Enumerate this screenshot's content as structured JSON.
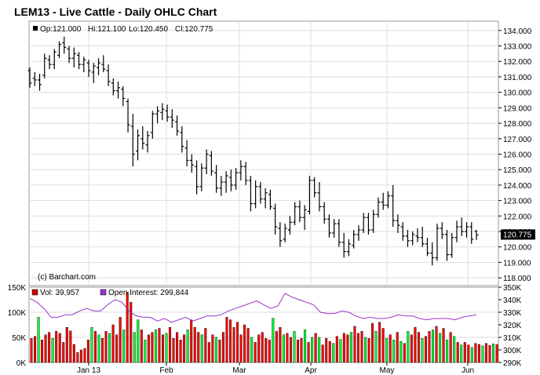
{
  "chart_data": [
    {
      "type": "ohlc",
      "title": "LEM13 - Live Cattle - Daily OHLC Chart",
      "info": {
        "open_label": "Op:121.000",
        "high_label": "Hi:121.100",
        "low_label": "Lo:120.450",
        "close_label": "Cl:120.775"
      },
      "watermark": "(c) Barchart.com",
      "last_price_label": "120.775",
      "last_price": 120.775,
      "ylim": [
        117.5,
        134.6
      ],
      "y_ticks": [
        "134.000",
        "133.000",
        "132.000",
        "131.000",
        "130.000",
        "129.000",
        "128.000",
        "127.000",
        "126.000",
        "125.000",
        "124.000",
        "123.000",
        "122.000",
        "121.000",
        "120.000",
        "119.000",
        "118.000"
      ],
      "x_labels": [
        "Jan 13",
        "Feb",
        "Mar",
        "Apr",
        "May",
        "Jun"
      ],
      "grid": true,
      "bars": [
        [
          131.4,
          131.6,
          130.3,
          130.6
        ],
        [
          130.9,
          131.3,
          130.4,
          130.8
        ],
        [
          130.8,
          131.2,
          130.1,
          130.5
        ],
        [
          131.1,
          132.5,
          130.9,
          132.2
        ],
        [
          132.1,
          132.4,
          131.5,
          131.8
        ],
        [
          131.8,
          132.8,
          131.5,
          132.6
        ],
        [
          132.4,
          133.3,
          132.2,
          133.1
        ],
        [
          133.2,
          133.6,
          132.5,
          132.9
        ],
        [
          132.8,
          133.0,
          131.9,
          132.2
        ],
        [
          132.2,
          132.9,
          131.6,
          132.5
        ],
        [
          132.4,
          132.6,
          131.5,
          131.8
        ],
        [
          131.8,
          132.3,
          131.3,
          132.1
        ],
        [
          131.9,
          132.1,
          131.0,
          131.4
        ],
        [
          131.3,
          131.9,
          130.6,
          131.7
        ],
        [
          131.6,
          132.2,
          131.1,
          131.9
        ],
        [
          131.8,
          132.4,
          131.3,
          131.5
        ],
        [
          131.4,
          131.8,
          130.4,
          130.7
        ],
        [
          130.6,
          130.9,
          129.8,
          130.1
        ],
        [
          130.1,
          130.7,
          129.6,
          130.3
        ],
        [
          130.2,
          130.4,
          129.1,
          129.6
        ],
        [
          129.4,
          129.6,
          127.4,
          127.9
        ],
        [
          127.8,
          128.6,
          125.2,
          126.0
        ],
        [
          126.2,
          127.6,
          125.6,
          127.2
        ],
        [
          127.0,
          127.8,
          126.3,
          126.7
        ],
        [
          126.6,
          127.5,
          126.1,
          127.2
        ],
        [
          127.4,
          128.8,
          127.0,
          128.6
        ],
        [
          128.6,
          129.1,
          128.0,
          128.8
        ],
        [
          128.7,
          129.3,
          128.2,
          128.9
        ],
        [
          128.8,
          129.2,
          128.1,
          128.4
        ],
        [
          128.4,
          128.9,
          127.7,
          128.2
        ],
        [
          128.1,
          128.5,
          127.2,
          127.5
        ],
        [
          127.4,
          127.8,
          126.1,
          126.5
        ],
        [
          126.4,
          126.9,
          125.2,
          125.6
        ],
        [
          125.6,
          126.0,
          124.8,
          125.3
        ],
        [
          125.2,
          125.6,
          123.4,
          123.9
        ],
        [
          123.9,
          125.4,
          123.6,
          125.1
        ],
        [
          125.1,
          126.3,
          124.7,
          126.0
        ],
        [
          125.9,
          126.2,
          124.6,
          124.9
        ],
        [
          124.8,
          125.3,
          123.5,
          123.8
        ],
        [
          123.8,
          124.6,
          123.3,
          124.2
        ],
        [
          124.2,
          124.9,
          123.5,
          124.6
        ],
        [
          124.5,
          125.0,
          123.6,
          124.0
        ],
        [
          124.0,
          125.1,
          123.7,
          124.8
        ],
        [
          124.8,
          125.6,
          124.3,
          125.2
        ],
        [
          125.2,
          125.5,
          124.0,
          124.3
        ],
        [
          124.3,
          124.6,
          122.3,
          122.8
        ],
        [
          122.8,
          124.3,
          122.5,
          123.9
        ],
        [
          123.9,
          124.2,
          122.8,
          123.1
        ],
        [
          123.1,
          123.8,
          122.5,
          123.5
        ],
        [
          123.4,
          123.7,
          122.4,
          122.6
        ],
        [
          122.5,
          122.8,
          120.8,
          121.3
        ],
        [
          121.2,
          121.6,
          120.0,
          120.4
        ],
        [
          120.5,
          121.5,
          120.3,
          121.2
        ],
        [
          121.1,
          122.0,
          120.8,
          121.6
        ],
        [
          121.6,
          122.9,
          121.4,
          122.6
        ],
        [
          122.6,
          123.0,
          121.6,
          121.9
        ],
        [
          121.9,
          122.7,
          121.1,
          122.4
        ],
        [
          122.3,
          124.6,
          122.1,
          124.3
        ],
        [
          124.3,
          124.5,
          123.2,
          123.5
        ],
        [
          123.5,
          124.2,
          122.3,
          122.6
        ],
        [
          122.6,
          122.9,
          121.5,
          121.8
        ],
        [
          121.8,
          122.1,
          120.6,
          120.9
        ],
        [
          120.9,
          121.8,
          120.6,
          121.5
        ],
        [
          121.5,
          121.8,
          120.0,
          120.3
        ],
        [
          120.3,
          120.9,
          119.3,
          119.7
        ],
        [
          119.7,
          120.5,
          119.4,
          120.2
        ],
        [
          120.1,
          121.1,
          119.9,
          120.8
        ],
        [
          120.8,
          121.4,
          120.4,
          121.1
        ],
        [
          121.1,
          122.2,
          120.9,
          121.9
        ],
        [
          121.9,
          122.2,
          120.8,
          121.1
        ],
        [
          121.1,
          122.4,
          120.9,
          122.1
        ],
        [
          122.1,
          123.2,
          121.9,
          122.9
        ],
        [
          122.9,
          123.5,
          122.4,
          122.7
        ],
        [
          122.7,
          123.6,
          122.5,
          123.3
        ],
        [
          123.3,
          124.0,
          121.3,
          121.7
        ],
        [
          121.7,
          122.1,
          120.9,
          121.4
        ],
        [
          121.3,
          121.6,
          120.4,
          120.7
        ],
        [
          120.7,
          121.1,
          120.0,
          120.4
        ],
        [
          120.4,
          121.0,
          120.1,
          120.8
        ],
        [
          120.7,
          121.2,
          120.3,
          120.6
        ],
        [
          120.6,
          121.3,
          120.0,
          120.2
        ],
        [
          120.2,
          120.6,
          119.4,
          119.6
        ],
        [
          119.6,
          120.3,
          118.8,
          119.3
        ],
        [
          119.3,
          121.5,
          119.1,
          121.2
        ],
        [
          121.2,
          121.6,
          120.5,
          120.8
        ],
        [
          120.8,
          121.1,
          119.1,
          119.5
        ],
        [
          119.5,
          120.9,
          119.3,
          120.6
        ],
        [
          120.6,
          121.7,
          120.3,
          121.3
        ],
        [
          121.3,
          121.9,
          120.7,
          121.0
        ],
        [
          121.0,
          121.6,
          120.6,
          121.3
        ],
        [
          121.3,
          121.6,
          120.2,
          120.5
        ],
        [
          121.0,
          121.1,
          120.45,
          120.775
        ]
      ]
    },
    {
      "type": "bar+line",
      "volume_legend": "Vol: 39,957",
      "oi_legend": "Open Interest: 299,844",
      "volume_ylim": [
        0,
        150000
      ],
      "volume_ticks": [
        "150K",
        "100K",
        "50K",
        "0K"
      ],
      "oi_ylim": [
        290000,
        350000
      ],
      "oi_ticks": [
        "350K",
        "340K",
        "330K",
        "320K",
        "310K",
        "300K",
        "290K"
      ],
      "up_color": "#00ff33",
      "down_color": "#ff0000",
      "oi_color": "#9933cc",
      "volume": [
        [
          48000,
          "d"
        ],
        [
          52000,
          "d"
        ],
        [
          90000,
          "u"
        ],
        [
          45000,
          "d"
        ],
        [
          55000,
          "d"
        ],
        [
          60000,
          "d"
        ],
        [
          48000,
          "u"
        ],
        [
          62000,
          "d"
        ],
        [
          58000,
          "d"
        ],
        [
          40000,
          "d"
        ],
        [
          70000,
          "d"
        ],
        [
          63000,
          "d"
        ],
        [
          36000,
          "d"
        ],
        [
          20000,
          "d"
        ],
        [
          25000,
          "d"
        ],
        [
          28000,
          "d"
        ],
        [
          45000,
          "d"
        ],
        [
          70000,
          "u"
        ],
        [
          62000,
          "d"
        ],
        [
          55000,
          "u"
        ],
        [
          48000,
          "d"
        ],
        [
          62000,
          "d"
        ],
        [
          58000,
          "u"
        ],
        [
          75000,
          "d"
        ],
        [
          55000,
          "d"
        ],
        [
          90000,
          "d"
        ],
        [
          65000,
          "u"
        ],
        [
          140000,
          "d"
        ],
        [
          120000,
          "d"
        ],
        [
          60000,
          "u"
        ],
        [
          85000,
          "u"
        ],
        [
          65000,
          "d"
        ],
        [
          45000,
          "u"
        ],
        [
          55000,
          "d"
        ],
        [
          60000,
          "d"
        ],
        [
          65000,
          "u"
        ],
        [
          68000,
          "d"
        ],
        [
          55000,
          "d"
        ],
        [
          58000,
          "u"
        ],
        [
          70000,
          "d"
        ],
        [
          48000,
          "d"
        ],
        [
          60000,
          "d"
        ],
        [
          45000,
          "d"
        ],
        [
          55000,
          "d"
        ],
        [
          65000,
          "u"
        ],
        [
          85000,
          "d"
        ],
        [
          70000,
          "d"
        ],
        [
          60000,
          "d"
        ],
        [
          55000,
          "u"
        ],
        [
          68000,
          "d"
        ],
        [
          40000,
          "d"
        ],
        [
          55000,
          "d"
        ],
        [
          50000,
          "u"
        ],
        [
          45000,
          "d"
        ],
        [
          60000,
          "d"
        ],
        [
          90000,
          "d"
        ],
        [
          85000,
          "d"
        ],
        [
          70000,
          "d"
        ],
        [
          80000,
          "d"
        ],
        [
          55000,
          "d"
        ],
        [
          75000,
          "d"
        ],
        [
          68000,
          "d"
        ],
        [
          50000,
          "u"
        ],
        [
          40000,
          "d"
        ],
        [
          55000,
          "d"
        ],
        [
          60000,
          "d"
        ],
        [
          48000,
          "d"
        ],
        [
          45000,
          "d"
        ],
        [
          88000,
          "u"
        ],
        [
          62000,
          "d"
        ],
        [
          70000,
          "d"
        ],
        [
          55000,
          "u"
        ],
        [
          58000,
          "d"
        ],
        [
          50000,
          "d"
        ],
        [
          62000,
          "u"
        ],
        [
          45000,
          "d"
        ],
        [
          48000,
          "d"
        ],
        [
          65000,
          "u"
        ],
        [
          40000,
          "d"
        ],
        [
          50000,
          "u"
        ],
        [
          58000,
          "d"
        ],
        [
          50000,
          "u"
        ],
        [
          35000,
          "d"
        ],
        [
          48000,
          "d"
        ],
        [
          42000,
          "d"
        ],
        [
          38000,
          "u"
        ],
        [
          52000,
          "d"
        ],
        [
          46000,
          "u"
        ],
        [
          58000,
          "d"
        ],
        [
          55000,
          "d"
        ],
        [
          60000,
          "u"
        ],
        [
          72000,
          "d"
        ],
        [
          58000,
          "d"
        ],
        [
          62000,
          "d"
        ],
        [
          50000,
          "u"
        ],
        [
          48000,
          "d"
        ],
        [
          78000,
          "d"
        ],
        [
          62000,
          "u"
        ],
        [
          80000,
          "d"
        ],
        [
          68000,
          "d"
        ],
        [
          48000,
          "u"
        ],
        [
          55000,
          "d"
        ],
        [
          45000,
          "u"
        ],
        [
          60000,
          "d"
        ],
        [
          42000,
          "u"
        ],
        [
          38000,
          "d"
        ],
        [
          62000,
          "u"
        ],
        [
          55000,
          "d"
        ],
        [
          70000,
          "d"
        ],
        [
          60000,
          "d"
        ],
        [
          48000,
          "u"
        ],
        [
          52000,
          "d"
        ],
        [
          62000,
          "d"
        ],
        [
          65000,
          "u"
        ],
        [
          72000,
          "d"
        ],
        [
          58000,
          "u"
        ],
        [
          68000,
          "d"
        ],
        [
          45000,
          "u"
        ],
        [
          60000,
          "d"
        ],
        [
          52000,
          "u"
        ],
        [
          40000,
          "d"
        ],
        [
          35000,
          "u"
        ],
        [
          40000,
          "d"
        ],
        [
          35000,
          "d"
        ],
        [
          30000,
          "u"
        ],
        [
          38000,
          "d"
        ],
        [
          36000,
          "d"
        ],
        [
          33000,
          "u"
        ],
        [
          38000,
          "d"
        ],
        [
          34000,
          "d"
        ],
        [
          37000,
          "u"
        ],
        [
          36000,
          "d"
        ]
      ],
      "open_interest": [
        341000,
        338000,
        333000,
        326000,
        326000,
        328000,
        328000,
        331000,
        333000,
        331000,
        331000,
        336000,
        340000,
        338000,
        331000,
        327000,
        326000,
        326000,
        323000,
        325000,
        322000,
        324000,
        326000,
        323000,
        325000,
        327000,
        327000,
        328000,
        331000,
        333000,
        335000,
        337000,
        339000,
        336000,
        333000,
        335000,
        345000,
        342000,
        340000,
        338000,
        336000,
        330000,
        329000,
        329000,
        331000,
        330000,
        327000,
        325000,
        326000,
        325000,
        325000,
        326000,
        328000,
        327000,
        327000,
        325000,
        324000,
        325000,
        325000,
        325000,
        324000,
        326000,
        327000,
        328000
      ]
    }
  ]
}
